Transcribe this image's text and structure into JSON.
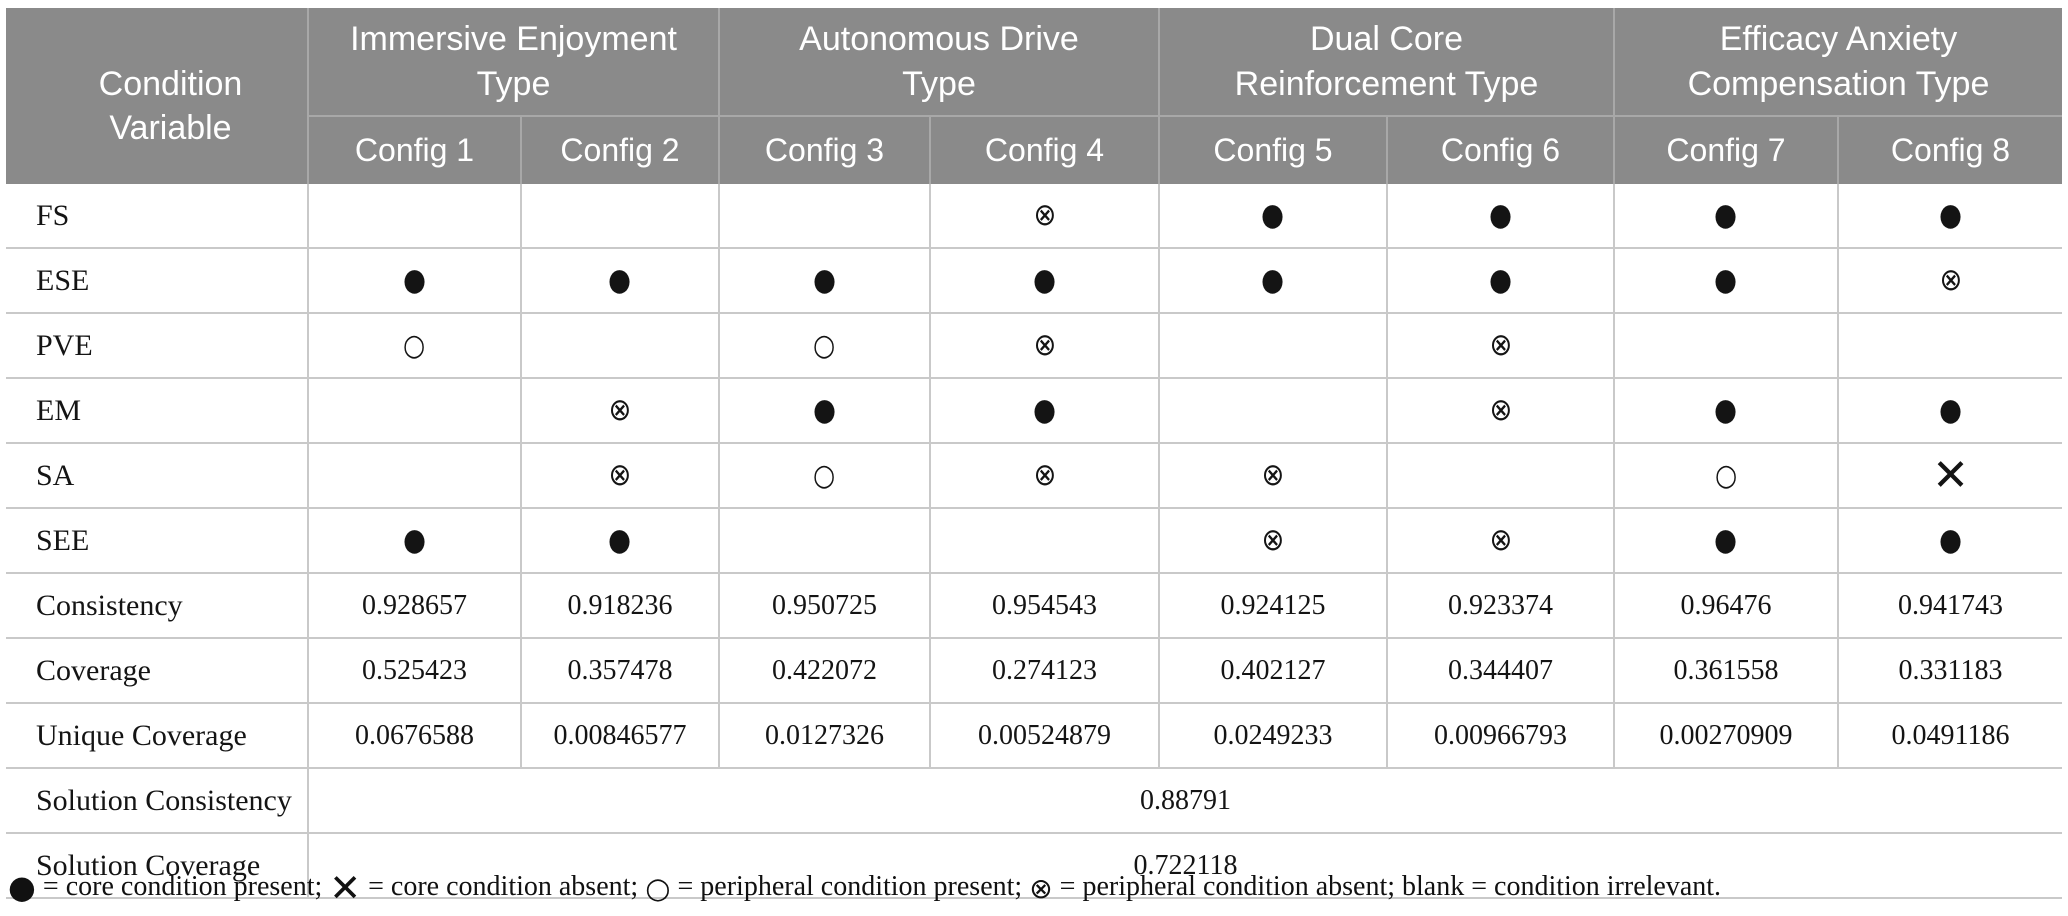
{
  "colors": {
    "header_bg": "#8a8a8a",
    "header_text": "#ffffff",
    "header_grid": "#a8a8a8",
    "body_grid": "#c9c9c9",
    "body_text": "#141414"
  },
  "table": {
    "corner_header": "Condition Variable",
    "groups": [
      {
        "label": "Immersive Enjoyment Type",
        "configs": [
          "Config 1",
          "Config 2"
        ]
      },
      {
        "label": "Autonomous Drive Type",
        "configs": [
          "Config 3",
          "Config 4"
        ]
      },
      {
        "label": "Dual Core Reinforcement Type",
        "configs": [
          "Config 5",
          "Config 6"
        ]
      },
      {
        "label": "Efficacy Anxiety Compensation Type",
        "configs": [
          "Config 7",
          "Config 8"
        ]
      }
    ],
    "symbols": {
      "core-present": "●",
      "core-absent": "✕",
      "peripheral-present": "○",
      "peripheral-absent": "⊗"
    },
    "condition_rows": [
      {
        "label": "FS",
        "cells": [
          "",
          "",
          "",
          "peripheral-absent",
          "core-present",
          "core-present",
          "core-present",
          "core-present"
        ]
      },
      {
        "label": "ESE",
        "cells": [
          "core-present",
          "core-present",
          "core-present",
          "core-present",
          "core-present",
          "core-present",
          "core-present",
          "peripheral-absent"
        ]
      },
      {
        "label": "PVE",
        "cells": [
          "peripheral-present",
          "",
          "peripheral-present",
          "peripheral-absent",
          "",
          "peripheral-absent",
          "",
          ""
        ]
      },
      {
        "label": "EM",
        "cells": [
          "",
          "peripheral-absent",
          "core-present",
          "core-present",
          "",
          "peripheral-absent",
          "core-present",
          "core-present"
        ]
      },
      {
        "label": "SA",
        "cells": [
          "",
          "peripheral-absent",
          "peripheral-present",
          "peripheral-absent",
          "peripheral-absent",
          "",
          "peripheral-present",
          "core-absent"
        ]
      },
      {
        "label": "SEE",
        "cells": [
          "core-present",
          "core-present",
          "",
          "",
          "peripheral-absent",
          "peripheral-absent",
          "core-present",
          "core-present"
        ]
      }
    ],
    "metric_rows": [
      {
        "label": "Consistency",
        "values": [
          "0.928657",
          "0.918236",
          "0.950725",
          "0.954543",
          "0.924125",
          "0.923374",
          "0.96476",
          "0.941743"
        ]
      },
      {
        "label": "Coverage",
        "values": [
          "0.525423",
          "0.357478",
          "0.422072",
          "0.274123",
          "0.402127",
          "0.344407",
          "0.361558",
          "0.331183"
        ]
      },
      {
        "label": "Unique Coverage",
        "values": [
          "0.0676588",
          "0.00846577",
          "0.0127326",
          "0.00524879",
          "0.0249233",
          "0.00966793",
          "0.00270909",
          "0.0491186"
        ]
      }
    ],
    "solution_rows": [
      {
        "label": "Solution Consistency",
        "value": "0.88791"
      },
      {
        "label": "Solution Coverage",
        "value": "0.722118"
      }
    ],
    "footnote": {
      "segments": [
        {
          "key": "core-present",
          "symbol": "●",
          "text": " = core condition present; "
        },
        {
          "key": "core-absent",
          "symbol": "✕",
          "text": " = core condition absent; "
        },
        {
          "key": "peripheral-present",
          "symbol": "○",
          "text": " = peripheral condition present; "
        },
        {
          "key": "peripheral-absent",
          "symbol": "⊗",
          "text": " = peripheral condition absent; "
        },
        {
          "key": "",
          "symbol": "",
          "text": "blank = condition irrelevant."
        }
      ]
    }
  }
}
